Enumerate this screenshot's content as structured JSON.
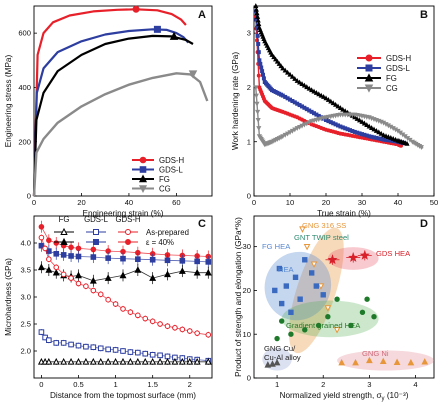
{
  "chart_data": [
    {
      "panel": "A",
      "type": "line",
      "xlabel": "Engineering strain (%)",
      "ylabel": "Engineering stress (MPa)",
      "xlim": [
        0,
        75
      ],
      "ylim": [
        0,
        700
      ],
      "xticks": [
        0,
        20,
        40,
        60
      ],
      "yticks": [
        0,
        200,
        400,
        600
      ],
      "legend": "bottom-right",
      "series": [
        {
          "name": "GDS-H",
          "color": "#e8202a",
          "marker": "circle",
          "x": [
            0,
            1.5,
            4,
            8,
            15,
            25,
            35,
            43,
            52,
            58,
            62,
            64
          ],
          "y": [
            0,
            520,
            600,
            640,
            665,
            680,
            686,
            688,
            684,
            670,
            650,
            630
          ],
          "marker_at": [
            43,
            688
          ]
        },
        {
          "name": "GDS-L",
          "color": "#2d3ea0",
          "marker": "square",
          "x": [
            0,
            1.2,
            4,
            10,
            20,
            30,
            40,
            50,
            56,
            60,
            63,
            65
          ],
          "y": [
            0,
            380,
            470,
            530,
            570,
            595,
            608,
            614,
            612,
            600,
            585,
            565
          ],
          "marker_at": [
            52,
            614
          ]
        },
        {
          "name": "FG",
          "color": "#000000",
          "marker": "triangle",
          "x": [
            0,
            1,
            4,
            10,
            20,
            30,
            40,
            50,
            58,
            64,
            67
          ],
          "y": [
            0,
            280,
            380,
            460,
            520,
            560,
            580,
            590,
            588,
            575,
            560
          ],
          "marker_at": [
            59,
            588
          ]
        },
        {
          "name": "CG",
          "color": "#8a8a8a",
          "marker": "triangle-down",
          "x": [
            0,
            1,
            4,
            10,
            20,
            30,
            40,
            50,
            60,
            66,
            70,
            73
          ],
          "y": [
            0,
            160,
            210,
            270,
            330,
            375,
            410,
            435,
            452,
            448,
            420,
            350
          ],
          "marker_at": [
            67,
            450
          ]
        }
      ]
    },
    {
      "panel": "B",
      "type": "line",
      "xlabel": "True strain (%)",
      "ylabel": "Work hardening rate (GPa)",
      "xlim": [
        0,
        50
      ],
      "ylim": [
        0,
        3.5
      ],
      "xticks": [
        0,
        10,
        20,
        30,
        40,
        50
      ],
      "yticks": [
        0,
        1,
        2,
        3
      ],
      "legend": "top-right",
      "series": [
        {
          "name": "GDS-H",
          "color": "#e8202a",
          "marker": "circle",
          "x": [
            0.5,
            1.5,
            3,
            5,
            8,
            12,
            16,
            20,
            24,
            28,
            32,
            36,
            40,
            41
          ],
          "y": [
            3.3,
            2.0,
            1.75,
            1.62,
            1.55,
            1.45,
            1.32,
            1.22,
            1.15,
            1.1,
            1.05,
            1.0,
            0.95,
            0.92
          ]
        },
        {
          "name": "GDS-L",
          "color": "#2d3ea0",
          "marker": "square",
          "x": [
            0.5,
            1.5,
            3,
            5,
            8,
            12,
            16,
            20,
            24,
            28,
            32,
            36,
            40,
            42
          ],
          "y": [
            3.4,
            2.5,
            2.1,
            1.95,
            1.85,
            1.7,
            1.55,
            1.4,
            1.28,
            1.18,
            1.1,
            1.04,
            1.0,
            0.97
          ]
        },
        {
          "name": "FG",
          "color": "#000000",
          "marker": "triangle",
          "x": [
            0.5,
            1.5,
            3,
            5,
            8,
            12,
            16,
            20,
            24,
            28,
            32,
            36,
            40,
            43
          ],
          "y": [
            3.5,
            3.1,
            2.85,
            2.6,
            2.35,
            2.12,
            1.95,
            1.8,
            1.62,
            1.45,
            1.28,
            1.12,
            1.02,
            0.95
          ]
        },
        {
          "name": "CG",
          "color": "#8a8a8a",
          "marker": "triangle-down",
          "x": [
            0.5,
            1.5,
            3,
            5,
            8,
            12,
            16,
            20,
            24,
            28,
            32,
            36,
            40,
            44,
            47
          ],
          "y": [
            2.0,
            1.1,
            0.95,
            1.0,
            1.1,
            1.25,
            1.38,
            1.45,
            1.5,
            1.5,
            1.45,
            1.35,
            1.2,
            1.0,
            0.88
          ]
        }
      ]
    },
    {
      "panel": "C",
      "type": "scatter",
      "xlabel": "Distance from the topmost surface (mm)",
      "ylabel": "Microhardness (GPa)",
      "xlim": [
        -0.1,
        2.3
      ],
      "ylim": [
        1.5,
        4.5
      ],
      "xticks": [
        0,
        0.5,
        1.0,
        1.5,
        2.0
      ],
      "yticks": [
        2.0,
        2.5,
        3.0,
        3.5,
        4.0
      ],
      "legend_header": [
        "FG",
        "GDS-L",
        "GDS-H"
      ],
      "legend_rows": [
        "As-prepared",
        "ε = 40%"
      ],
      "series": [
        {
          "name": "GDS-H ε = 40%",
          "color": "#e8202a",
          "fill": true,
          "marker": "circle",
          "x": [
            0,
            0.1,
            0.2,
            0.3,
            0.4,
            0.5,
            0.7,
            0.9,
            1.1,
            1.3,
            1.5,
            1.7,
            1.9,
            2.1,
            2.25
          ],
          "y": [
            4.3,
            4.05,
            4.0,
            3.95,
            3.92,
            3.9,
            3.88,
            3.85,
            3.84,
            3.82,
            3.8,
            3.78,
            3.77,
            3.76,
            3.75
          ]
        },
        {
          "name": "GDS-L ε = 40%",
          "color": "#2d3ea0",
          "fill": true,
          "marker": "square",
          "x": [
            0,
            0.1,
            0.2,
            0.3,
            0.4,
            0.5,
            0.7,
            0.9,
            1.1,
            1.3,
            1.5,
            1.7,
            1.9,
            2.1,
            2.25
          ],
          "y": [
            3.95,
            3.85,
            3.8,
            3.78,
            3.76,
            3.75,
            3.74,
            3.72,
            3.71,
            3.7,
            3.69,
            3.68,
            3.67,
            3.66,
            3.65
          ]
        },
        {
          "name": "FG ε = 40%",
          "color": "#000000",
          "fill": true,
          "marker": "triangle",
          "x": [
            0,
            0.1,
            0.2,
            0.3,
            0.4,
            0.5,
            0.7,
            0.9,
            1.1,
            1.3,
            1.5,
            1.7,
            1.9,
            2.1,
            2.25
          ],
          "y": [
            3.55,
            3.5,
            3.45,
            3.4,
            3.38,
            3.4,
            3.3,
            3.35,
            3.4,
            3.5,
            3.35,
            3.42,
            3.48,
            3.45,
            3.45
          ]
        },
        {
          "name": "GDS-H As-prepared",
          "color": "#e8202a",
          "fill": false,
          "marker": "circle",
          "x": [
            0,
            0.05,
            0.1,
            0.2,
            0.3,
            0.4,
            0.5,
            0.6,
            0.7,
            0.8,
            0.9,
            1.0,
            1.1,
            1.2,
            1.3,
            1.4,
            1.5,
            1.6,
            1.7,
            1.8,
            1.9,
            2.0,
            2.1,
            2.25
          ],
          "y": [
            4.1,
            3.9,
            3.7,
            3.55,
            3.42,
            3.35,
            3.25,
            3.2,
            3.12,
            3.05,
            2.95,
            2.87,
            2.78,
            2.72,
            2.66,
            2.6,
            2.55,
            2.5,
            2.46,
            2.43,
            2.4,
            2.37,
            2.33,
            2.3
          ]
        },
        {
          "name": "GDS-L As-prepared",
          "color": "#2d3ea0",
          "fill": false,
          "marker": "square",
          "x": [
            0,
            0.05,
            0.1,
            0.2,
            0.3,
            0.4,
            0.5,
            0.6,
            0.7,
            0.8,
            0.9,
            1.0,
            1.1,
            1.2,
            1.3,
            1.4,
            1.5,
            1.6,
            1.7,
            1.8,
            1.9,
            2.0,
            2.1,
            2.25
          ],
          "y": [
            2.35,
            2.25,
            2.2,
            2.15,
            2.15,
            2.12,
            2.1,
            2.08,
            2.07,
            2.05,
            2.03,
            2.02,
            2.0,
            1.98,
            1.97,
            1.95,
            1.93,
            1.92,
            1.9,
            1.88,
            1.87,
            1.85,
            1.84,
            1.82
          ]
        },
        {
          "name": "FG As-prepared",
          "color": "#000000",
          "fill": false,
          "marker": "triangle",
          "x": [
            0,
            0.05,
            0.1,
            0.2,
            0.3,
            0.4,
            0.5,
            0.6,
            0.7,
            0.8,
            0.9,
            1.0,
            1.1,
            1.2,
            1.3,
            1.4,
            1.5,
            1.6,
            1.7,
            1.8,
            1.9,
            2.0,
            2.1,
            2.25
          ],
          "y": [
            1.8,
            1.8,
            1.8,
            1.8,
            1.8,
            1.8,
            1.8,
            1.8,
            1.8,
            1.8,
            1.8,
            1.8,
            1.8,
            1.8,
            1.8,
            1.8,
            1.8,
            1.8,
            1.8,
            1.8,
            1.8,
            1.8,
            1.8,
            1.8
          ]
        }
      ]
    },
    {
      "panel": "D",
      "type": "scatter",
      "xlabel": "Normalized yield strength, σ",
      "xlabel_sub": "y",
      "xlabel_suffix": "(10⁻³)",
      "ylabel": "Product of strength and elongation (GPa*%)",
      "xlim": [
        0.5,
        4.4
      ],
      "ylim": [
        0,
        37
      ],
      "xticks": [
        1,
        2,
        3,
        4
      ],
      "yticks": [
        0,
        10,
        20,
        30
      ],
      "regions": [
        {
          "label": "GNG 316 SS",
          "color": "#e8963a"
        },
        {
          "label": "GNT TWIP steel",
          "color": "#2e8a70"
        },
        {
          "label": "FG HEA",
          "color": "#5a8ad0"
        },
        {
          "label": "HEA",
          "color": "#5a8ad0"
        },
        {
          "label": "GDS HEA",
          "color": "#d8202a"
        },
        {
          "label": "Gradient grained HEA",
          "color": "#2a7a2a"
        },
        {
          "label": "GNG Cu/\nCu-Al alloy",
          "color": "#222222"
        },
        {
          "label": "GNG Ni",
          "color": "#d06a7a"
        }
      ],
      "series": [
        {
          "name": "GDS HEA",
          "color": "#d8202a",
          "marker": "star",
          "x": [
            2.2,
            2.65,
            2.9
          ],
          "y": [
            27,
            27.5,
            28
          ]
        },
        {
          "name": "GNG 316 SS",
          "color": "#e8963a",
          "marker": "triangle-down",
          "x": [
            1.55,
            1.65,
            1.8,
            1.95,
            2.1,
            2.3
          ],
          "y": [
            34,
            30,
            26,
            21,
            16,
            11
          ]
        },
        {
          "name": "HEA",
          "color": "#3a6ac0",
          "marker": "square",
          "x": [
            0.95,
            1.05,
            1.1,
            1.2,
            1.3,
            1.4,
            1.5,
            1.6,
            1.75,
            1.85,
            2.0
          ],
          "y": [
            20,
            25,
            17,
            21,
            15,
            23,
            18,
            27,
            24,
            21,
            19
          ]
        },
        {
          "name": "Gradient grained HEA",
          "color": "#1e7a2a",
          "marker": "circle",
          "x": [
            1.0,
            1.1,
            1.3,
            1.6,
            1.9,
            2.1,
            2.3,
            2.6,
            2.85,
            2.95,
            3.1
          ],
          "y": [
            9,
            13,
            10,
            11,
            12,
            14,
            18,
            12,
            15,
            18,
            14
          ]
        },
        {
          "name": "GNG Ni",
          "color": "#e8963a",
          "marker": "triangle",
          "x": [
            2.4,
            2.7,
            3.0,
            3.3,
            3.6,
            3.9,
            4.2
          ],
          "y": [
            3.5,
            3.5,
            4,
            3.8,
            3.6,
            3.5,
            3.7
          ]
        },
        {
          "name": "GNG Cu/Cu-Al alloy",
          "color": "#555555",
          "marker": "triangle",
          "x": [
            0.8,
            0.9,
            1.0
          ],
          "y": [
            3,
            3.2,
            3.5
          ]
        }
      ]
    }
  ]
}
